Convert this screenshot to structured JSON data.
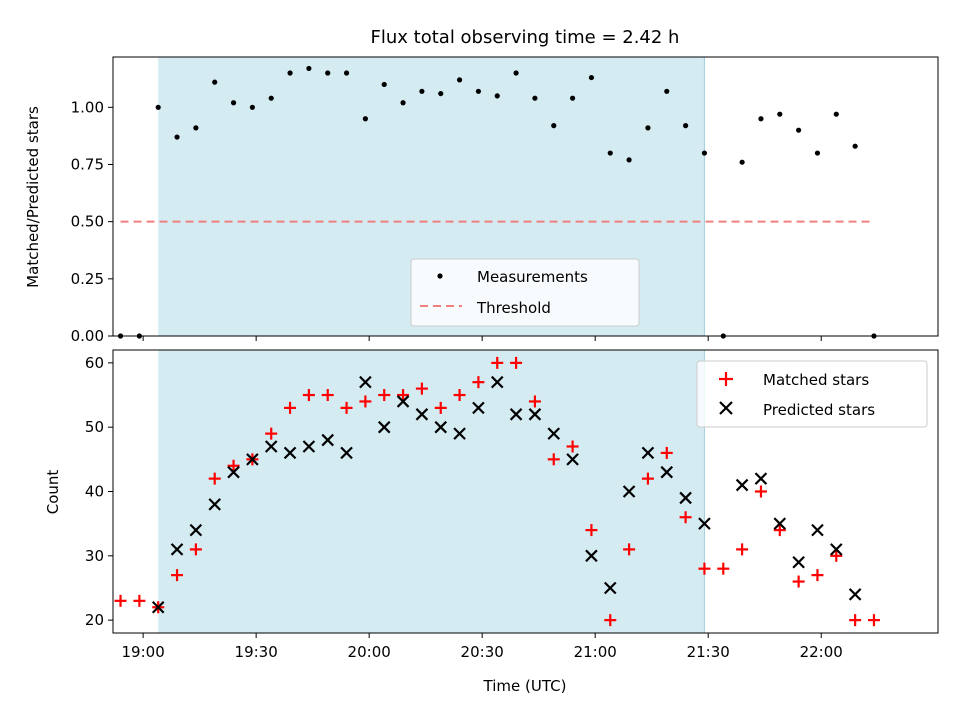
{
  "chart_data": [
    {
      "type": "scatter",
      "title": "Flux total observing time = 2.42 h",
      "ylabel": "Matched/Predicted stars",
      "xlabel": "",
      "ylim": [
        0,
        1.22
      ],
      "x_axis": {
        "min": "18:52",
        "max": "22:31",
        "ticks": [
          "19:00",
          "19:30",
          "20:00",
          "20:30",
          "21:00",
          "21:30",
          "22:00"
        ],
        "tick_labels_shown": false
      },
      "y_ticks": [
        0.0,
        0.25,
        0.5,
        0.75,
        1.0
      ],
      "y_tick_labels": [
        "0.00",
        "0.25",
        "0.50",
        "0.75",
        "1.00"
      ],
      "shaded_interval": [
        "19:04",
        "21:29"
      ],
      "shade_color": "#add8e6",
      "legend": {
        "placement": "bottom-center",
        "entries": [
          "Measurements",
          "Threshold"
        ]
      },
      "series": [
        {
          "name": "Measurements",
          "marker": "dot",
          "color": "#000000",
          "x": [
            "18:54",
            "18:59",
            "19:04",
            "19:09",
            "19:14",
            "19:19",
            "19:24",
            "19:29",
            "19:34",
            "19:39",
            "19:44",
            "19:49",
            "19:54",
            "19:59",
            "20:04",
            "20:09",
            "20:14",
            "20:19",
            "20:24",
            "20:29",
            "20:34",
            "20:39",
            "20:44",
            "20:49",
            "20:54",
            "20:59",
            "21:04",
            "21:09",
            "21:14",
            "21:19",
            "21:24",
            "21:29",
            "21:34",
            "21:39",
            "21:44",
            "21:49",
            "21:54",
            "21:59",
            "22:04",
            "22:09",
            "22:14"
          ],
          "y": [
            0.0,
            0.0,
            1.0,
            0.87,
            0.91,
            1.11,
            1.02,
            1.0,
            1.04,
            1.15,
            1.17,
            1.15,
            1.15,
            0.95,
            1.1,
            1.02,
            1.07,
            1.06,
            1.12,
            1.07,
            1.05,
            1.15,
            1.04,
            0.92,
            1.04,
            1.13,
            0.8,
            0.77,
            0.91,
            1.07,
            0.92,
            0.8,
            0.0,
            0.76,
            0.95,
            0.97,
            0.9,
            0.8,
            0.97,
            0.83,
            0.0
          ]
        },
        {
          "name": "Threshold",
          "line_style": "dashed",
          "color": "#f08080",
          "x": [
            "18:54",
            "22:14"
          ],
          "y": [
            0.5,
            0.5
          ]
        }
      ]
    },
    {
      "type": "scatter",
      "title": "",
      "ylabel": "Count",
      "xlabel": "Time (UTC)",
      "ylim": [
        18,
        62
      ],
      "x_axis": {
        "min": "18:52",
        "max": "22:31",
        "ticks": [
          "19:00",
          "19:30",
          "20:00",
          "20:30",
          "21:00",
          "21:30",
          "22:00"
        ],
        "tick_labels_shown": true
      },
      "y_ticks": [
        20,
        30,
        40,
        50,
        60
      ],
      "y_tick_labels": [
        "20",
        "30",
        "40",
        "50",
        "60"
      ],
      "shaded_interval": [
        "19:04",
        "21:29"
      ],
      "shade_color": "#add8e6",
      "legend": {
        "placement": "top-right",
        "entries": [
          "Matched stars",
          "Predicted stars"
        ]
      },
      "series": [
        {
          "name": "Matched stars",
          "marker": "plus",
          "color": "#ff0000",
          "x": [
            "18:54",
            "18:59",
            "19:04",
            "19:09",
            "19:14",
            "19:19",
            "19:24",
            "19:29",
            "19:34",
            "19:39",
            "19:44",
            "19:49",
            "19:54",
            "19:59",
            "20:04",
            "20:09",
            "20:14",
            "20:19",
            "20:24",
            "20:29",
            "20:34",
            "20:39",
            "20:44",
            "20:49",
            "20:54",
            "20:59",
            "21:04",
            "21:09",
            "21:14",
            "21:19",
            "21:24",
            "21:29",
            "21:34",
            "21:39",
            "21:44",
            "21:49",
            "21:54",
            "21:59",
            "22:04",
            "22:09",
            "22:14"
          ],
          "y": [
            23,
            23,
            22,
            27,
            31,
            42,
            44,
            45,
            49,
            53,
            55,
            55,
            53,
            54,
            55,
            55,
            56,
            53,
            55,
            57,
            60,
            60,
            54,
            45,
            47,
            34,
            20,
            31,
            42,
            46,
            36,
            28,
            28,
            31,
            40,
            34,
            26,
            27,
            30,
            20,
            20
          ]
        },
        {
          "name": "Predicted stars",
          "marker": "x",
          "color": "#000000",
          "x": [
            "19:04",
            "19:09",
            "19:14",
            "19:19",
            "19:24",
            "19:29",
            "19:34",
            "19:39",
            "19:44",
            "19:49",
            "19:54",
            "19:59",
            "20:04",
            "20:09",
            "20:14",
            "20:19",
            "20:24",
            "20:29",
            "20:34",
            "20:39",
            "20:44",
            "20:49",
            "20:54",
            "20:59",
            "21:04",
            "21:09",
            "21:14",
            "21:19",
            "21:24",
            "21:29",
            "21:39",
            "21:44",
            "21:49",
            "21:54",
            "21:59",
            "22:04",
            "22:09"
          ],
          "y": [
            22,
            31,
            34,
            38,
            43,
            45,
            47,
            46,
            47,
            48,
            46,
            57,
            50,
            54,
            52,
            50,
            49,
            53,
            57,
            52,
            52,
            49,
            45,
            30,
            25,
            40,
            46,
            43,
            39,
            35,
            41,
            42,
            35,
            29,
            34,
            31,
            24
          ]
        }
      ]
    }
  ]
}
